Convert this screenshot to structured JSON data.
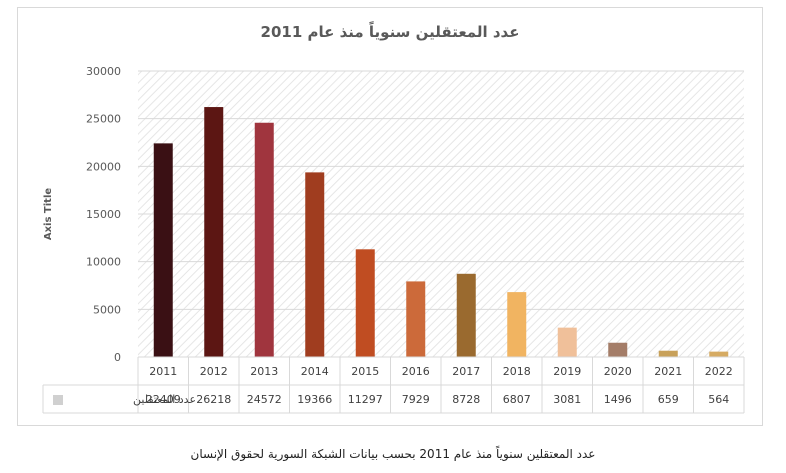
{
  "caption": "عدد المعتقلين سنوياً منذ عام 2011 بحسب بيانات الشبكة السورية لحقوق الإنسان",
  "colors": {
    "bars": [
      "#3a1014",
      "#5c1613",
      "#a0353e",
      "#a03d1f",
      "#c04d22",
      "#cc6a3a",
      "#9a6a2f",
      "#f1b461",
      "#f0c09a",
      "#a47d68",
      "#c8a15a",
      "#d6ab63"
    ],
    "grid": "#d9d9d9",
    "hatch": "#e6e6e6",
    "legend_swatch": "#d0d0d0"
  },
  "chart_data": {
    "type": "bar",
    "title": "عدد المعتقلين سنوياً منذ عام 2011",
    "xlabel": "",
    "ylabel": "Axis Title",
    "categories": [
      "2011",
      "2012",
      "2013",
      "2014",
      "2015",
      "2016",
      "2017",
      "2018",
      "2019",
      "2020",
      "2021",
      "2022"
    ],
    "series": [
      {
        "name": "عدد المعتقلين",
        "values": [
          22409,
          26218,
          24572,
          19366,
          11297,
          7929,
          8728,
          6807,
          3081,
          1496,
          659,
          564
        ]
      }
    ],
    "ylim": [
      0,
      30000
    ],
    "yticks": [
      "0",
      "5000",
      "10000",
      "15000",
      "20000",
      "25000",
      "30000"
    ],
    "data_table": true,
    "grid": true
  }
}
